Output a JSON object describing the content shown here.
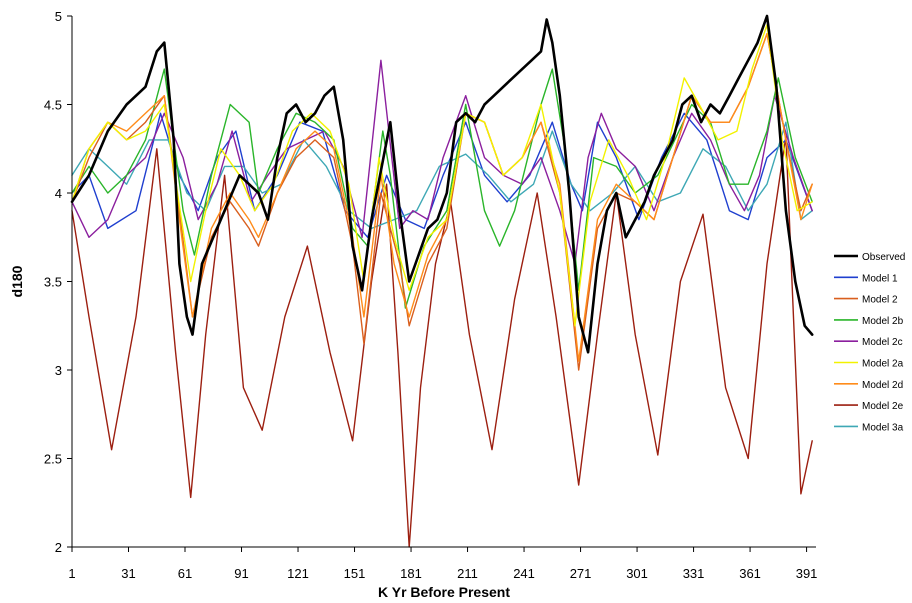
{
  "chart_data": {
    "type": "line",
    "title": "",
    "xlabel": "K Yr Before Present",
    "ylabel": "d180",
    "xlim": [
      1,
      396
    ],
    "ylim": [
      2,
      5
    ],
    "yticks": [
      "2",
      "2.5",
      "3",
      "3.5",
      "4",
      "4.5",
      "5"
    ],
    "xticks": [
      "1",
      "31",
      "61",
      "91",
      "121",
      "151",
      "181",
      "211",
      "241",
      "271",
      "301",
      "331",
      "361",
      "391"
    ],
    "grid": false,
    "legend_position": "right",
    "series": [
      {
        "name": "Observed",
        "color": "#000000",
        "x": [
          1,
          10,
          20,
          30,
          40,
          46,
          50,
          55,
          58,
          62,
          65,
          70,
          80,
          90,
          100,
          105,
          110,
          115,
          120,
          125,
          130,
          135,
          140,
          145,
          150,
          155,
          160,
          170,
          175,
          180,
          185,
          190,
          195,
          200,
          205,
          210,
          215,
          220,
          225,
          230,
          235,
          240,
          245,
          250,
          253,
          256,
          260,
          265,
          270,
          275,
          280,
          285,
          290,
          295,
          300,
          305,
          310,
          315,
          320,
          325,
          330,
          335,
          340,
          345,
          350,
          355,
          360,
          365,
          370,
          375,
          380,
          385,
          390,
          394
        ],
        "y": [
          3.95,
          4.1,
          4.35,
          4.5,
          4.6,
          4.8,
          4.85,
          4.3,
          3.6,
          3.3,
          3.2,
          3.6,
          3.85,
          4.1,
          4.0,
          3.85,
          4.2,
          4.45,
          4.5,
          4.4,
          4.45,
          4.55,
          4.6,
          4.3,
          3.7,
          3.45,
          3.85,
          4.4,
          3.9,
          3.5,
          3.65,
          3.8,
          3.85,
          4.0,
          4.4,
          4.45,
          4.4,
          4.5,
          4.55,
          4.6,
          4.65,
          4.7,
          4.75,
          4.8,
          4.98,
          4.85,
          4.55,
          4.0,
          3.3,
          3.1,
          3.6,
          3.9,
          4.0,
          3.75,
          3.85,
          3.95,
          4.1,
          4.2,
          4.3,
          4.5,
          4.55,
          4.4,
          4.5,
          4.45,
          4.55,
          4.65,
          4.75,
          4.85,
          5.0,
          4.6,
          3.9,
          3.5,
          3.25,
          3.2
        ]
      },
      {
        "name": "Model 1",
        "color": "#1f3fcf",
        "x": [
          1,
          10,
          20,
          35,
          48,
          58,
          68,
          78,
          88,
          98,
          110,
          122,
          134,
          146,
          158,
          168,
          178,
          188,
          198,
          210,
          220,
          232,
          244,
          256,
          266,
          272,
          280,
          290,
          302,
          314,
          326,
          338,
          350,
          360,
          370,
          380,
          394
        ],
        "y": [
          4.0,
          4.1,
          3.8,
          3.9,
          4.45,
          4.1,
          3.9,
          4.2,
          4.35,
          3.9,
          4.1,
          4.4,
          4.35,
          3.9,
          3.75,
          4.1,
          3.85,
          3.8,
          4.1,
          4.4,
          4.1,
          3.95,
          4.1,
          4.4,
          4.05,
          3.9,
          4.4,
          4.2,
          3.85,
          4.2,
          4.45,
          4.3,
          3.9,
          3.85,
          4.2,
          4.3,
          3.9
        ]
      },
      {
        "name": "Model 2",
        "color": "#d95f1e",
        "x": [
          1,
          10,
          20,
          30,
          40,
          50,
          58,
          65,
          75,
          85,
          95,
          100,
          110,
          120,
          130,
          140,
          150,
          156,
          165,
          175,
          180,
          190,
          200,
          210,
          220,
          230,
          240,
          250,
          260,
          270,
          280,
          290,
          300,
          310,
          320,
          330,
          340,
          350,
          360,
          370,
          380,
          388,
          394
        ],
        "y": [
          3.95,
          4.2,
          4.4,
          4.3,
          4.4,
          4.55,
          3.9,
          3.3,
          3.75,
          3.95,
          3.8,
          3.7,
          4.0,
          4.2,
          4.3,
          4.2,
          3.7,
          3.15,
          4.0,
          3.6,
          3.25,
          3.6,
          3.8,
          4.45,
          4.4,
          4.1,
          4.2,
          4.4,
          4.0,
          3.0,
          3.8,
          4.0,
          3.95,
          3.85,
          4.2,
          4.55,
          4.4,
          4.4,
          4.6,
          4.9,
          4.3,
          3.9,
          4.05
        ]
      },
      {
        "name": "Model 2b",
        "color": "#2ab52a",
        "x": [
          1,
          10,
          20,
          30,
          40,
          50,
          55,
          60,
          66,
          75,
          85,
          95,
          100,
          110,
          120,
          130,
          140,
          150,
          158,
          166,
          170,
          178,
          188,
          200,
          210,
          220,
          228,
          236,
          250,
          256,
          262,
          270,
          278,
          290,
          300,
          312,
          330,
          340,
          350,
          360,
          370,
          376,
          385,
          394
        ],
        "y": [
          4.0,
          4.15,
          4.0,
          4.1,
          4.3,
          4.7,
          4.3,
          3.9,
          3.65,
          4.1,
          4.5,
          4.4,
          4.0,
          4.25,
          4.45,
          4.4,
          4.3,
          3.8,
          3.7,
          4.35,
          4.1,
          3.35,
          3.7,
          3.9,
          4.5,
          3.9,
          3.7,
          3.9,
          4.5,
          4.7,
          4.3,
          3.45,
          4.2,
          4.15,
          4.0,
          4.1,
          4.5,
          4.4,
          4.05,
          4.05,
          4.35,
          4.65,
          4.2,
          3.95
        ]
      },
      {
        "name": "Model 2c",
        "color": "#8b1f9e",
        "x": [
          1,
          10,
          20,
          30,
          40,
          50,
          60,
          68,
          78,
          86,
          96,
          105,
          115,
          125,
          135,
          145,
          155,
          165,
          175,
          182,
          190,
          198,
          210,
          220,
          230,
          240,
          250,
          260,
          268,
          275,
          282,
          290,
          300,
          310,
          320,
          330,
          340,
          350,
          358,
          366,
          374,
          384,
          394
        ],
        "y": [
          3.95,
          3.75,
          3.85,
          4.1,
          4.2,
          4.45,
          4.2,
          3.85,
          4.05,
          4.35,
          3.95,
          4.1,
          4.25,
          4.3,
          4.35,
          4.15,
          3.75,
          4.75,
          3.8,
          3.9,
          3.85,
          4.2,
          4.55,
          4.2,
          4.1,
          4.05,
          4.2,
          3.9,
          3.6,
          4.2,
          4.45,
          4.25,
          4.15,
          3.9,
          4.2,
          4.45,
          4.3,
          4.05,
          3.9,
          4.1,
          4.55,
          4.2,
          3.9
        ]
      },
      {
        "name": "Model 2a",
        "color": "#f2f200",
        "x": [
          1,
          10,
          20,
          30,
          40,
          50,
          57,
          64,
          72,
          80,
          90,
          98,
          108,
          118,
          128,
          138,
          148,
          156,
          164,
          172,
          180,
          190,
          200,
          210,
          220,
          230,
          240,
          250,
          260,
          268,
          276,
          286,
          296,
          306,
          316,
          326,
          334,
          344,
          354,
          362,
          370,
          378,
          386,
          394
        ],
        "y": [
          3.95,
          4.25,
          4.4,
          4.3,
          4.35,
          4.5,
          4.0,
          3.5,
          3.9,
          4.25,
          4.1,
          3.9,
          4.05,
          4.35,
          4.45,
          4.35,
          4.05,
          3.5,
          4.2,
          3.75,
          3.45,
          3.75,
          3.85,
          4.45,
          4.4,
          4.1,
          4.2,
          4.5,
          4.0,
          3.25,
          3.95,
          4.3,
          4.1,
          3.85,
          4.2,
          4.65,
          4.5,
          4.3,
          4.35,
          4.7,
          4.95,
          4.3,
          3.9,
          3.95
        ]
      },
      {
        "name": "Model 2d",
        "color": "#ff8c1a",
        "x": [
          1,
          10,
          20,
          30,
          40,
          50,
          58,
          65,
          75,
          85,
          95,
          100,
          110,
          120,
          130,
          140,
          150,
          156,
          165,
          172,
          180,
          190,
          200,
          210,
          220,
          230,
          240,
          250,
          260,
          270,
          280,
          290,
          300,
          310,
          320,
          330,
          340,
          350,
          360,
          370,
          380,
          388,
          394
        ],
        "y": [
          3.95,
          4.25,
          4.4,
          4.35,
          4.45,
          4.55,
          3.85,
          3.3,
          3.8,
          4.0,
          3.85,
          3.75,
          4.0,
          4.25,
          4.35,
          4.25,
          3.75,
          3.3,
          4.1,
          3.6,
          3.3,
          3.65,
          3.85,
          4.45,
          4.4,
          4.1,
          4.2,
          4.4,
          4.05,
          3.05,
          3.85,
          4.05,
          3.95,
          3.85,
          4.2,
          4.55,
          4.4,
          4.4,
          4.6,
          4.9,
          4.3,
          3.85,
          4.05
        ]
      },
      {
        "name": "Model 2e",
        "color": "#9c1f10",
        "x": [
          1,
          10,
          22,
          35,
          46,
          56,
          64,
          72,
          82,
          92,
          102,
          114,
          126,
          138,
          150,
          160,
          168,
          174,
          180,
          186,
          194,
          202,
          212,
          224,
          236,
          248,
          258,
          270,
          280,
          290,
          300,
          312,
          324,
          336,
          348,
          360,
          370,
          380,
          388,
          394
        ],
        "y": [
          3.9,
          3.3,
          2.55,
          3.3,
          4.25,
          3.1,
          2.28,
          3.2,
          4.1,
          2.9,
          2.66,
          3.3,
          3.7,
          3.1,
          2.6,
          3.5,
          4.05,
          3.1,
          2.0,
          2.9,
          3.6,
          3.95,
          3.2,
          2.55,
          3.4,
          4.0,
          3.3,
          2.35,
          3.2,
          4.0,
          3.2,
          2.52,
          3.5,
          3.88,
          2.9,
          2.5,
          3.6,
          4.32,
          2.3,
          2.6
        ]
      },
      {
        "name": "Model 3a",
        "color": "#3ea8b5",
        "x": [
          1,
          10,
          20,
          30,
          42,
          52,
          62,
          72,
          82,
          92,
          102,
          112,
          124,
          136,
          148,
          160,
          172,
          184,
          196,
          210,
          222,
          234,
          246,
          256,
          266,
          276,
          288,
          300,
          312,
          324,
          336,
          348,
          360,
          370,
          380,
          388,
          394
        ],
        "y": [
          4.1,
          4.25,
          4.15,
          4.05,
          4.3,
          4.3,
          4.0,
          3.9,
          4.15,
          4.15,
          4.0,
          4.05,
          4.3,
          4.15,
          3.9,
          3.8,
          3.85,
          3.9,
          4.15,
          4.22,
          4.1,
          3.95,
          4.05,
          4.35,
          4.05,
          3.9,
          4.0,
          4.15,
          3.95,
          4.0,
          4.25,
          4.15,
          3.9,
          4.05,
          4.4,
          3.85,
          3.9
        ]
      }
    ]
  }
}
